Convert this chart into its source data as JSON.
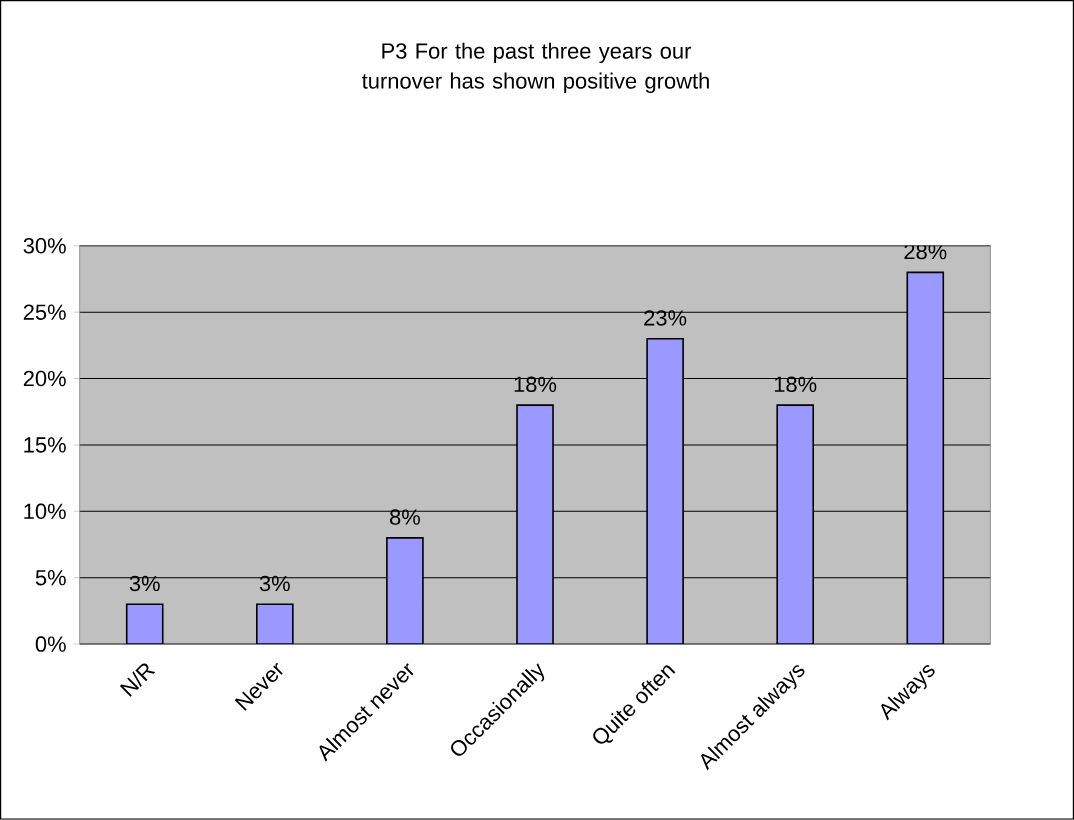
{
  "chart_data": {
    "type": "bar",
    "title": "P3  For the past three years our turnover has shown positive growth",
    "categories": [
      "N/R",
      "Never",
      "Almost never",
      "Occasionally",
      "Quite often",
      "Almost always",
      "Always"
    ],
    "values": [
      3,
      3,
      8,
      18,
      23,
      18,
      28
    ],
    "value_labels": [
      "3%",
      "3%",
      "8%",
      "18%",
      "23%",
      "18%",
      "28%"
    ],
    "color": "#9999ff",
    "ylim": [
      0,
      30
    ],
    "yticks": [
      {
        "value": 0,
        "label": "0%"
      },
      {
        "value": 5,
        "label": "5%"
      },
      {
        "value": 10,
        "label": "10%"
      },
      {
        "value": 15,
        "label": "15%"
      },
      {
        "value": 20,
        "label": "20%"
      },
      {
        "value": 25,
        "label": "25%"
      },
      {
        "value": 30,
        "label": "30%"
      }
    ],
    "grid": "y"
  }
}
